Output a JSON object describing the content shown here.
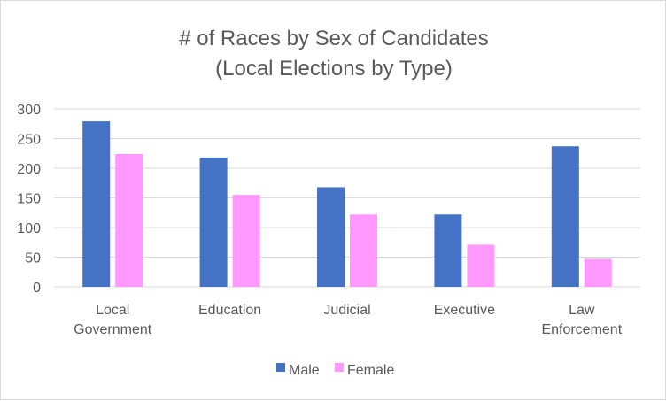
{
  "chart_data": {
    "type": "bar",
    "title_line1": "# of Races by Sex of Candidates",
    "title_line2": "(Local Elections by Type)",
    "categories": [
      [
        "Local",
        "Government"
      ],
      [
        "Education"
      ],
      [
        "Judicial"
      ],
      [
        "Executive"
      ],
      [
        "Law",
        "Enforcement"
      ]
    ],
    "series": [
      {
        "name": "Male",
        "color": "#4472c4",
        "values": [
          279,
          218,
          168,
          122,
          237
        ]
      },
      {
        "name": "Female",
        "color": "#ff99ff",
        "values": [
          224,
          155,
          122,
          71,
          47
        ]
      }
    ],
    "ylim": [
      0,
      300
    ],
    "yticks": [
      0,
      50,
      100,
      150,
      200,
      250,
      300
    ],
    "grid": true,
    "legend": "bottom"
  }
}
